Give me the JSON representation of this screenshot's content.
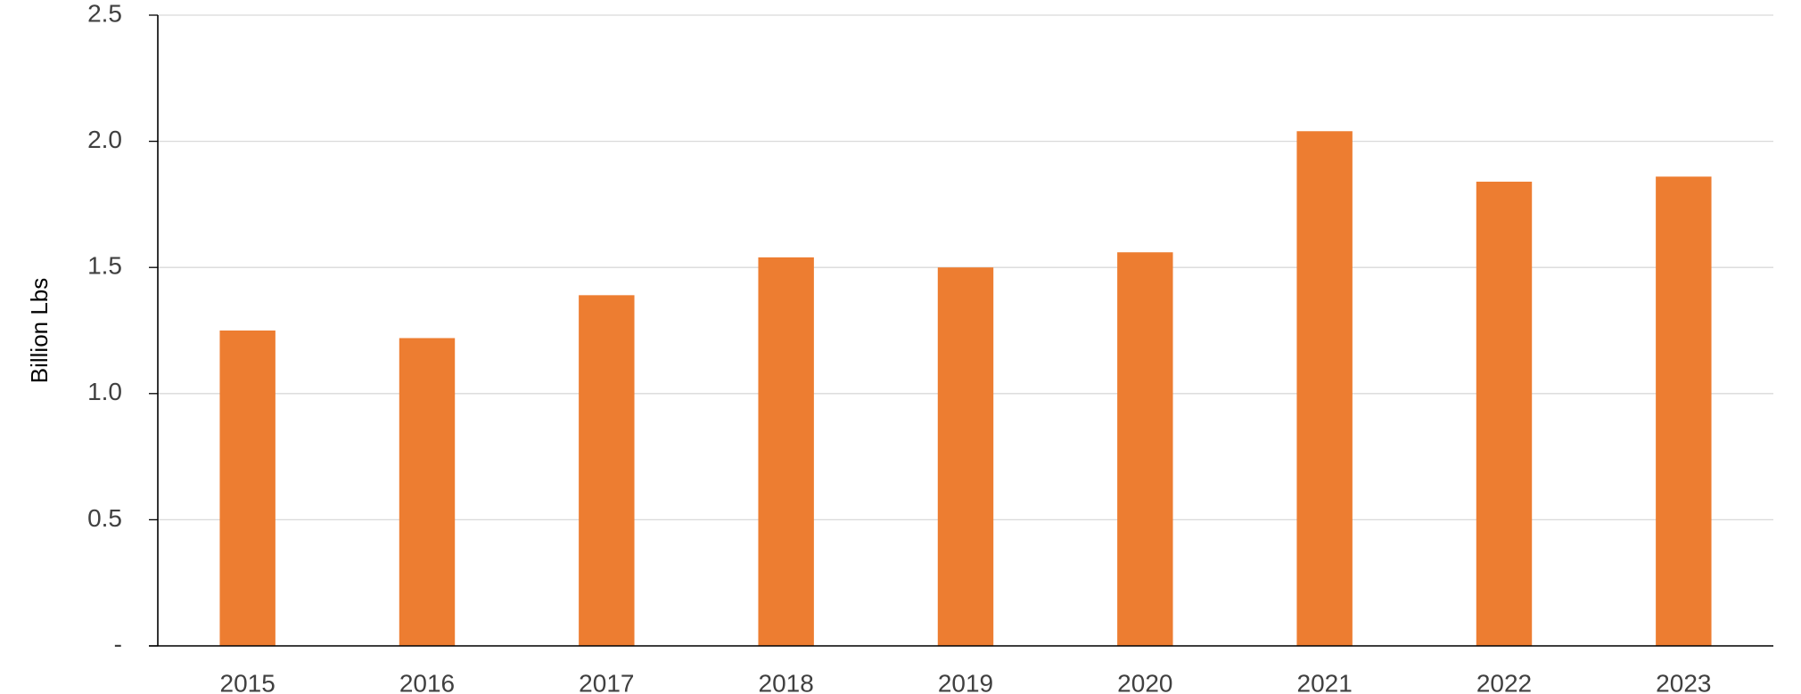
{
  "chart_data": {
    "type": "bar",
    "y_label": "Billion Lbs",
    "categories": [
      "2015",
      "2016",
      "2017",
      "2018",
      "2019",
      "2020",
      "2021",
      "2022",
      "2023"
    ],
    "values": [
      1.25,
      1.22,
      1.39,
      1.54,
      1.5,
      1.56,
      2.04,
      1.84,
      1.86
    ],
    "color": "#ed7d31",
    "ylim": [
      0,
      2.5
    ],
    "yticks": [
      {
        "value": 0,
        "label": "-"
      },
      0.5,
      {
        "value": 1,
        "label": "1.0"
      },
      1.5,
      {
        "value": 2,
        "label": "2.0"
      },
      2.5
    ],
    "grid": true
  }
}
